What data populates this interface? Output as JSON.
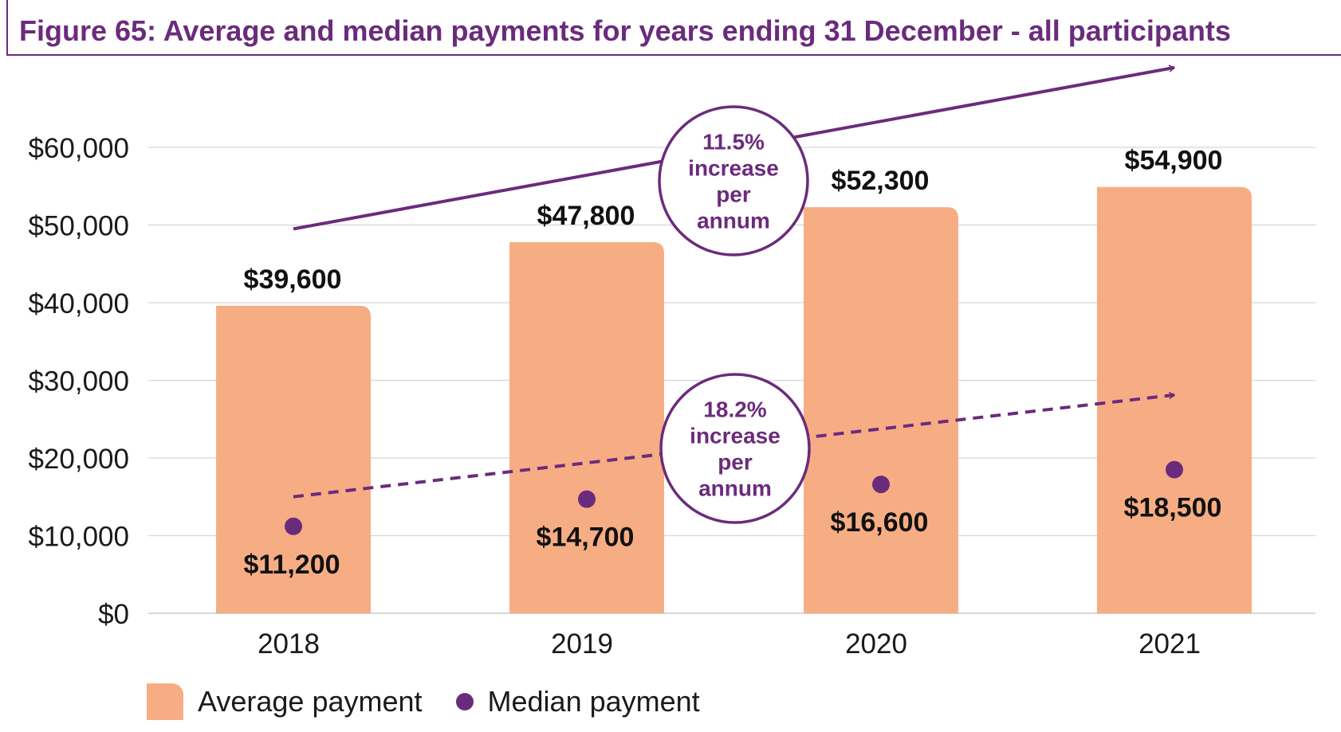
{
  "figure": {
    "title": "Figure 65: Average and median payments for years ending 31 December - all participants"
  },
  "colors": {
    "bar": "#f7ad84",
    "accent": "#6b2b7c",
    "grid": "#d6d6d6",
    "text": "#1a1a1a"
  },
  "chart_data": {
    "type": "bar",
    "categories": [
      "2018",
      "2019",
      "2020",
      "2021"
    ],
    "ylim": [
      0,
      60000
    ],
    "yticks": [
      0,
      10000,
      20000,
      30000,
      40000,
      50000,
      60000
    ],
    "ytick_labels": [
      "$0",
      "$10,000",
      "$20,000",
      "$30,000",
      "$40,000",
      "$50,000",
      "$60,000"
    ],
    "grid": true,
    "legend_position": "bottom-left",
    "series": [
      {
        "name": "Average payment",
        "mark": "bar",
        "values": [
          39600,
          47800,
          52300,
          54900
        ],
        "labels": [
          "$39,600",
          "$47,800",
          "$52,300",
          "$54,900"
        ]
      },
      {
        "name": "Median payment",
        "mark": "dot",
        "values": [
          11200,
          14700,
          16600,
          18500
        ],
        "labels": [
          "$11,200",
          "$14,700",
          "$16,600",
          "$18,500"
        ]
      }
    ],
    "annotations": [
      {
        "series": "Average payment",
        "style": "solid-arrow",
        "text": [
          "11.5%",
          "increase",
          "per",
          "annum"
        ]
      },
      {
        "series": "Median payment",
        "style": "dashed-arrow",
        "text": [
          "18.2%",
          "increase",
          "per",
          "annum"
        ]
      }
    ]
  }
}
